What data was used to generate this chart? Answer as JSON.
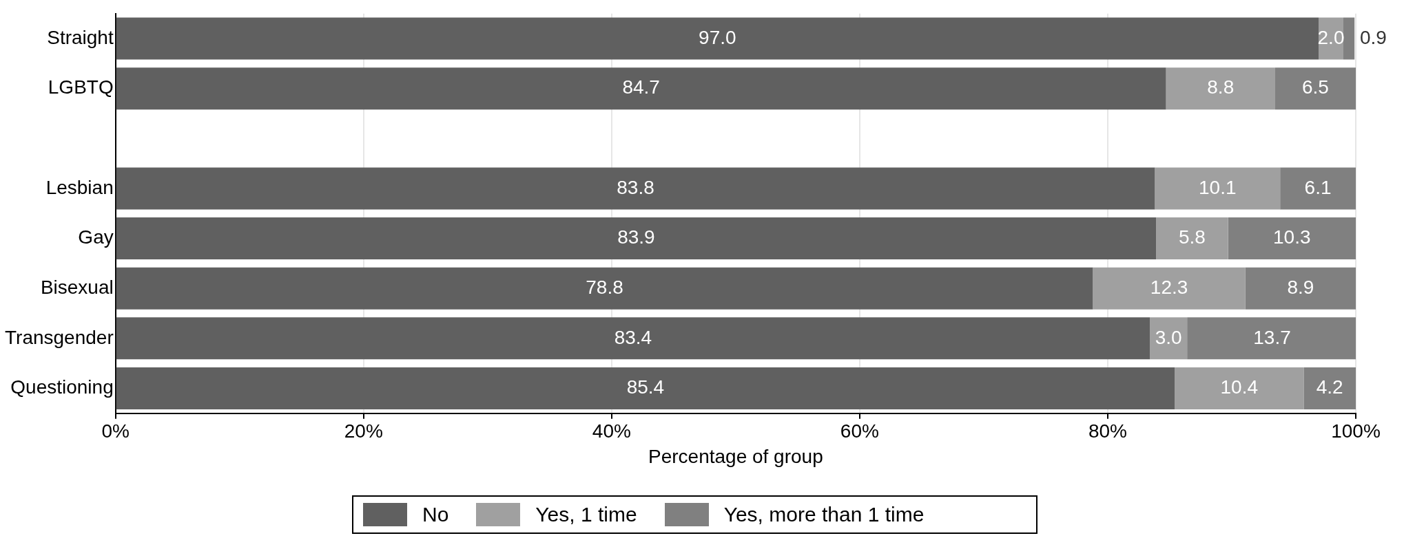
{
  "chart_data": {
    "type": "bar",
    "orientation": "horizontal",
    "stacked": true,
    "categories": [
      "Straight",
      "LGBTQ",
      null,
      "Lesbian",
      "Gay",
      "Bisexual",
      "Transgender",
      "Questioning"
    ],
    "series": [
      {
        "name": "No",
        "color": "#606060",
        "values": [
          97.0,
          84.7,
          null,
          83.8,
          83.9,
          78.8,
          83.4,
          85.4
        ],
        "value_labels": [
          "97.0",
          "84.7",
          null,
          "83.8",
          "83.9",
          "78.8",
          "83.4",
          "85.4"
        ]
      },
      {
        "name": "Yes, 1 time",
        "color": "#a0a0a0",
        "values": [
          2.0,
          8.8,
          null,
          10.1,
          5.8,
          12.3,
          3.0,
          10.4
        ],
        "value_labels": [
          "2.0",
          "8.8",
          null,
          "10.1",
          "5.8",
          "12.3",
          "3.0",
          "10.4"
        ]
      },
      {
        "name": "Yes, more than 1 time",
        "color": "#808080",
        "values": [
          0.9,
          6.5,
          null,
          6.1,
          10.3,
          8.9,
          13.7,
          4.2
        ],
        "value_labels": [
          "0.9",
          "6.5",
          null,
          "6.1",
          "10.3",
          "8.9",
          "13.7",
          "4.2"
        ]
      }
    ],
    "xlabel": "Percentage of group",
    "xlim": [
      0,
      100
    ],
    "xticks": [
      {
        "value": 0,
        "label": "0%"
      },
      {
        "value": 20,
        "label": "20%"
      },
      {
        "value": 40,
        "label": "40%"
      },
      {
        "value": 60,
        "label": "60%"
      },
      {
        "value": 80,
        "label": "80%"
      },
      {
        "value": 100,
        "label": "100%"
      }
    ],
    "grid": "x",
    "legend": "bottom"
  }
}
